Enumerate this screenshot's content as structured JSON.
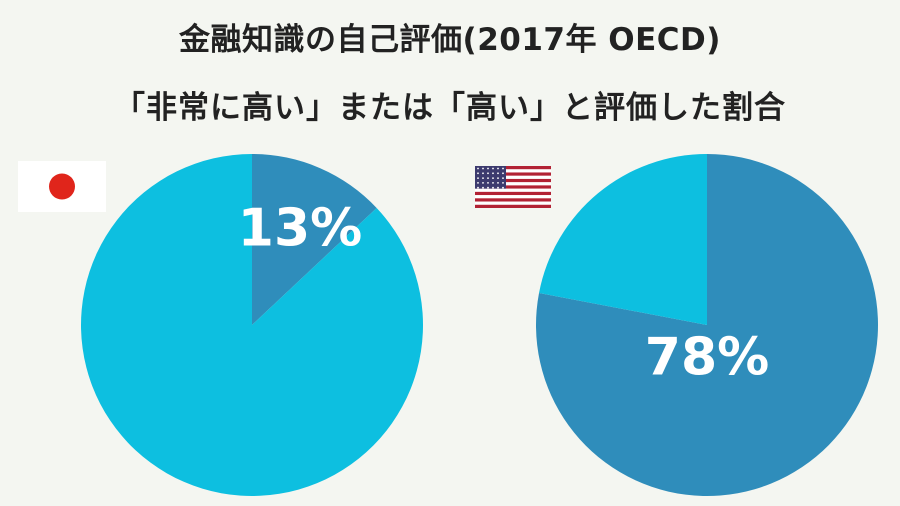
{
  "title": "金融知識の自己評価(2017年 OECD)",
  "subtitle": "「非常に高い」または「高い」と評価した割合",
  "colors": {
    "highlight": "#2f8dbb",
    "remainder": "#0dbfe0",
    "jp_red": "#e0251b",
    "us_red": "#b22234",
    "us_blue": "#3c3b6e"
  },
  "chart_data": [
    {
      "type": "pie",
      "flag_icon": "japan-flag-icon",
      "slices": [
        {
          "value": 13,
          "label": "13%",
          "color": "#2f8dbb"
        },
        {
          "value": 87,
          "label": "",
          "color": "#0dbfe0"
        }
      ]
    },
    {
      "type": "pie",
      "flag_icon": "usa-flag-icon",
      "slices": [
        {
          "value": 78,
          "label": "78%",
          "color": "#2f8dbb"
        },
        {
          "value": 22,
          "label": "",
          "color": "#0dbfe0"
        }
      ]
    }
  ]
}
